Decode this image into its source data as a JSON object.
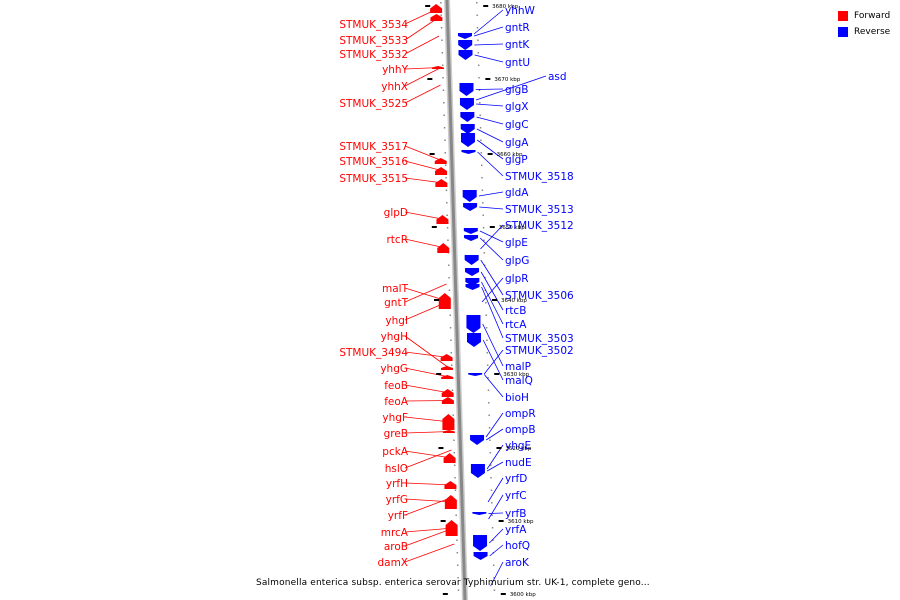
{
  "legend": {
    "forward": {
      "label": "Forward",
      "color": "#ff0000"
    },
    "reverse": {
      "label": "Reverse",
      "color": "#0000ff"
    }
  },
  "caption": "Salmonella enterica subsp. enterica serovar Typhimurium str. UK-1, complete geno...",
  "ticks": [
    "3680 kbp",
    "3670 kbp",
    "3660 kbp",
    "3650 kbp",
    "3640 kbp",
    "3630 kbp",
    "3620 kbp",
    "3610 kbp",
    "3600 kbp"
  ],
  "forward_genes": [
    "STMUK_3534",
    "STMUK_3533",
    "STMUK_3532",
    "yhhY",
    "yhhX",
    "STMUK_3525",
    "STMUK_3517",
    "STMUK_3516",
    "STMUK_3515",
    "glpD",
    "rtcR",
    "malT",
    "gntT",
    "yhgI",
    "yhgH",
    "STMUK_3494",
    "yhgG",
    "feoB",
    "feoA",
    "yhgF",
    "greB",
    "pckA",
    "hslO",
    "yrfH",
    "yrfG",
    "yrfF",
    "mrcA",
    "aroB",
    "damX"
  ],
  "reverse_genes": [
    "yhhW",
    "gntR",
    "gntK",
    "gntU",
    "asd",
    "glgB",
    "glgX",
    "glgC",
    "glgA",
    "glgP",
    "STMUK_3518",
    "gldA",
    "STMUK_3513",
    "STMUK_3512",
    "glpE",
    "glpG",
    "glpR",
    "STMUK_3506",
    "rtcB",
    "rtcA",
    "STMUK_3503",
    "STMUK_3502",
    "malP",
    "malQ",
    "bioH",
    "ompR",
    "ompB",
    "yhgE",
    "nudE",
    "yrfD",
    "yrfC",
    "yrfB",
    "yrfA",
    "hofQ",
    "aroK"
  ]
}
